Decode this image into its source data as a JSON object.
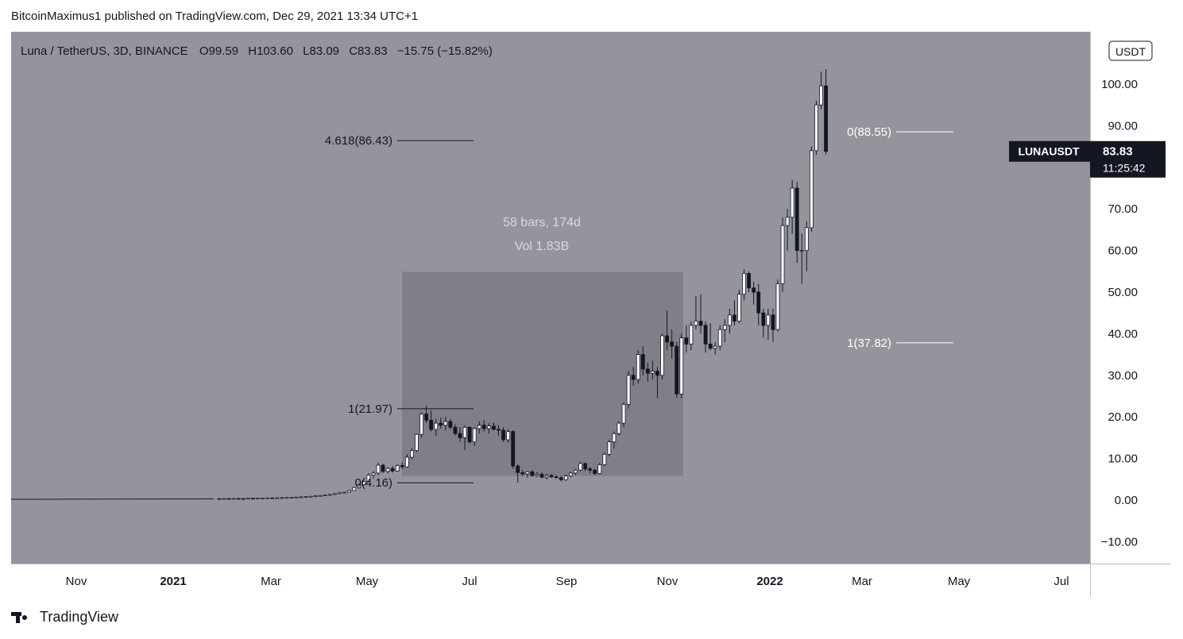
{
  "header": {
    "publisher": "BitcoinMaximus1 published on TradingView.com, Dec 29, 2021 13:34 UTC+1"
  },
  "legend": {
    "symbol": "Luna / TetherUS, 3D, BINANCE",
    "o_label": "O",
    "o_value": "99.59",
    "h_label": "H",
    "h_value": "103.60",
    "l_label": "L",
    "l_value": "83.09",
    "c_label": "C",
    "c_value": "83.83",
    "change": "−15.75 (−15.82%)"
  },
  "currency_button": "USDT",
  "price_tag": {
    "symbol": "LUNAUSDT",
    "price": "83.83",
    "countdown": "11:25:42"
  },
  "footer": {
    "brand": "TradingView"
  },
  "colors": {
    "plot_bg": "#94959c",
    "box_fill": "#7f8087",
    "up_candle": "#ffffff",
    "down_candle": "#131722",
    "wick": "#131722",
    "tag_bg": "#131722"
  },
  "chart_data": {
    "type": "candlestick",
    "timeframe": "3D",
    "ylim": [
      -14,
      113
    ],
    "y_ticks": [
      {
        "value": 100,
        "label": "100.00"
      },
      {
        "value": 90,
        "label": "90.00"
      },
      {
        "value": 70,
        "label": "70.00"
      },
      {
        "value": 60,
        "label": "60.00"
      },
      {
        "value": 50,
        "label": "50.00"
      },
      {
        "value": 40,
        "label": "40.00"
      },
      {
        "value": 30,
        "label": "30.00"
      },
      {
        "value": 20,
        "label": "20.00"
      },
      {
        "value": 10,
        "label": "10.00"
      },
      {
        "value": 0,
        "label": "0.00"
      },
      {
        "value": -10,
        "label": "−10.00"
      }
    ],
    "x_ticks": [
      "Nov",
      "2021",
      "Mar",
      "May",
      "Jul",
      "Sep",
      "Nov",
      "2022",
      "Mar",
      "May",
      "Jul"
    ],
    "measure_box": {
      "label": "58 bars, 174d",
      "vol_label": "Vol 1.83B",
      "y_top": 54.9,
      "y_bottom": 5.8
    },
    "fib_levels": [
      {
        "label": "4.618(86.43)",
        "value": 86.43
      },
      {
        "label": "1(21.97)",
        "value": 21.97
      },
      {
        "label": "0(4.16)",
        "value": 4.16
      },
      {
        "label": "0(88.55)",
        "value": 88.55
      },
      {
        "label": "1(37.82)",
        "value": 37.82
      }
    ],
    "candles": [
      [
        0.36,
        0.37,
        0.33,
        0.35
      ],
      [
        0.35,
        0.4,
        0.34,
        0.38
      ],
      [
        0.38,
        0.39,
        0.32,
        0.34
      ],
      [
        0.34,
        0.4,
        0.33,
        0.39
      ],
      [
        0.39,
        0.42,
        0.36,
        0.37
      ],
      [
        0.37,
        0.38,
        0.34,
        0.36
      ],
      [
        0.36,
        0.45,
        0.35,
        0.44
      ],
      [
        0.44,
        0.46,
        0.4,
        0.41
      ],
      [
        0.41,
        0.47,
        0.4,
        0.46
      ],
      [
        0.46,
        0.5,
        0.44,
        0.48
      ],
      [
        0.48,
        0.55,
        0.45,
        0.53
      ],
      [
        0.53,
        0.56,
        0.48,
        0.5
      ],
      [
        0.5,
        0.58,
        0.49,
        0.56
      ],
      [
        0.56,
        0.62,
        0.52,
        0.6
      ],
      [
        0.6,
        0.66,
        0.57,
        0.63
      ],
      [
        0.63,
        0.7,
        0.6,
        0.68
      ],
      [
        0.68,
        0.75,
        0.64,
        0.72
      ],
      [
        0.72,
        0.8,
        0.68,
        0.78
      ],
      [
        0.78,
        0.86,
        0.74,
        0.84
      ],
      [
        0.84,
        0.95,
        0.8,
        0.92
      ],
      [
        0.92,
        1.05,
        0.88,
        1.02
      ],
      [
        1.02,
        1.15,
        0.98,
        1.1
      ],
      [
        1.1,
        1.3,
        1.05,
        1.25
      ],
      [
        1.25,
        1.4,
        1.18,
        1.35
      ],
      [
        1.35,
        1.6,
        1.3,
        1.55
      ],
      [
        1.55,
        1.8,
        1.45,
        1.75
      ],
      [
        1.75,
        2.0,
        1.65,
        1.9
      ],
      [
        1.9,
        2.4,
        1.85,
        2.3
      ],
      [
        2.3,
        3.2,
        2.2,
        3.0
      ],
      [
        3.0,
        4.0,
        2.8,
        3.7
      ],
      [
        3.7,
        4.8,
        3.5,
        4.5
      ],
      [
        4.5,
        6.5,
        4.3,
        6.0
      ],
      [
        6.0,
        7.0,
        5.2,
        6.5
      ],
      [
        6.5,
        9.0,
        6.0,
        8.4
      ],
      [
        8.4,
        8.8,
        6.5,
        6.9
      ],
      [
        6.9,
        8.0,
        6.4,
        7.6
      ],
      [
        7.6,
        8.2,
        6.6,
        7.0
      ],
      [
        7.0,
        8.7,
        6.8,
        8.3
      ],
      [
        8.3,
        9.0,
        7.5,
        8.0
      ],
      [
        8.0,
        11.0,
        7.8,
        10.3
      ],
      [
        10.3,
        12.5,
        9.8,
        11.9
      ],
      [
        11.9,
        16.0,
        11.5,
        15.8
      ],
      [
        15.8,
        21.0,
        15.0,
        20.7
      ],
      [
        20.7,
        22.7,
        18.5,
        19.2
      ],
      [
        19.2,
        21.5,
        16.5,
        17.0
      ],
      [
        17.0,
        19.5,
        15.5,
        18.5
      ],
      [
        18.5,
        19.8,
        17.2,
        18.0
      ],
      [
        18.0,
        20.0,
        16.8,
        18.9
      ],
      [
        18.9,
        19.5,
        17.0,
        17.5
      ],
      [
        17.5,
        18.2,
        15.5,
        16.0
      ],
      [
        16.0,
        17.5,
        14.0,
        15.0
      ],
      [
        15.0,
        18.0,
        12.0,
        17.5
      ],
      [
        17.5,
        17.8,
        13.5,
        14.0
      ],
      [
        14.0,
        17.5,
        13.0,
        17.2
      ],
      [
        17.2,
        19.0,
        16.0,
        18.0
      ],
      [
        18.0,
        19.2,
        16.5,
        17.2
      ],
      [
        17.2,
        18.5,
        16.0,
        17.8
      ],
      [
        17.8,
        18.7,
        16.8,
        17.0
      ],
      [
        17.0,
        18.0,
        15.5,
        16.8
      ],
      [
        16.8,
        17.5,
        14.0,
        14.5
      ],
      [
        14.5,
        17.0,
        13.8,
        16.5
      ],
      [
        16.5,
        16.8,
        7.5,
        8.2
      ],
      [
        8.2,
        8.6,
        4.16,
        6.6
      ],
      [
        6.6,
        7.3,
        5.8,
        6.3
      ],
      [
        6.3,
        7.0,
        5.4,
        6.8
      ],
      [
        6.8,
        7.2,
        5.6,
        5.9
      ],
      [
        5.9,
        6.8,
        5.5,
        6.2
      ],
      [
        6.2,
        6.6,
        5.2,
        5.5
      ],
      [
        5.5,
        6.4,
        5.0,
        5.9
      ],
      [
        5.9,
        6.3,
        5.3,
        5.6
      ],
      [
        5.6,
        6.0,
        5.2,
        5.4
      ],
      [
        5.4,
        5.8,
        4.5,
        4.9
      ],
      [
        4.9,
        6.2,
        4.7,
        5.8
      ],
      [
        5.8,
        6.8,
        5.5,
        6.5
      ],
      [
        6.5,
        7.5,
        6.0,
        7.2
      ],
      [
        7.2,
        9.2,
        6.9,
        8.8
      ],
      [
        8.8,
        9.0,
        7.0,
        7.5
      ],
      [
        7.5,
        8.0,
        6.5,
        7.2
      ],
      [
        7.2,
        7.5,
        6.0,
        6.4
      ],
      [
        6.4,
        9.0,
        6.2,
        8.5
      ],
      [
        8.5,
        11.5,
        8.2,
        11.0
      ],
      [
        11.0,
        14.5,
        10.5,
        14.0
      ],
      [
        14.0,
        16.5,
        12.5,
        16.0
      ],
      [
        16.0,
        19.0,
        15.5,
        18.5
      ],
      [
        18.5,
        23.5,
        17.5,
        23.0
      ],
      [
        23.0,
        31.0,
        22.0,
        30.0
      ],
      [
        30.0,
        32.0,
        27.5,
        29.0
      ],
      [
        29.0,
        36.0,
        28.0,
        35.0
      ],
      [
        35.0,
        37.0,
        30.0,
        31.5
      ],
      [
        31.5,
        33.0,
        28.5,
        30.5
      ],
      [
        30.5,
        33.5,
        29.0,
        31.0
      ],
      [
        31.0,
        32.0,
        24.5,
        30.0
      ],
      [
        30.0,
        40.0,
        29.0,
        39.5
      ],
      [
        39.5,
        45.5,
        36.0,
        38.0
      ],
      [
        38.0,
        41.0,
        34.0,
        37.0
      ],
      [
        37.0,
        38.0,
        24.5,
        25.5
      ],
      [
        25.5,
        40.0,
        24.5,
        39.0
      ],
      [
        39.0,
        42.0,
        35.5,
        37.5
      ],
      [
        37.5,
        43.0,
        36.0,
        42.0
      ],
      [
        42.0,
        49.0,
        41.0,
        43.0
      ],
      [
        43.0,
        49.5,
        40.0,
        42.0
      ],
      [
        42.0,
        43.0,
        35.5,
        37.5
      ],
      [
        37.5,
        42.5,
        36.0,
        36.5
      ],
      [
        36.5,
        38.0,
        35.0,
        37.0
      ],
      [
        37.0,
        42.0,
        36.0,
        41.0
      ],
      [
        41.0,
        43.5,
        38.0,
        42.0
      ],
      [
        42.0,
        46.0,
        40.0,
        44.5
      ],
      [
        44.5,
        48.0,
        42.0,
        43.0
      ],
      [
        43.0,
        50.5,
        42.5,
        49.5
      ],
      [
        49.5,
        55.5,
        48.0,
        54.5
      ],
      [
        54.5,
        55.0,
        50.0,
        51.0
      ],
      [
        51.0,
        52.5,
        47.0,
        50.0
      ],
      [
        50.0,
        52.0,
        42.0,
        45.0
      ],
      [
        45.0,
        46.0,
        39.0,
        42.0
      ],
      [
        42.0,
        46.0,
        38.5,
        44.5
      ],
      [
        44.5,
        46.0,
        38.0,
        41.0
      ],
      [
        41.0,
        53.0,
        40.5,
        52.0
      ],
      [
        52.0,
        68.0,
        50.0,
        66.0
      ],
      [
        66.0,
        70.0,
        60.0,
        68.0
      ],
      [
        68.0,
        77.0,
        64.0,
        75.0
      ],
      [
        75.0,
        76.5,
        57.0,
        60.0
      ],
      [
        60.0,
        64.0,
        52.0,
        60.0
      ],
      [
        60.0,
        67.0,
        55.0,
        65.5
      ],
      [
        65.5,
        85.0,
        64.5,
        84.0
      ],
      [
        84.0,
        96.0,
        83.0,
        95.0
      ],
      [
        95.0,
        103.0,
        94.0,
        99.59
      ],
      [
        99.59,
        103.6,
        83.09,
        83.83
      ]
    ]
  }
}
